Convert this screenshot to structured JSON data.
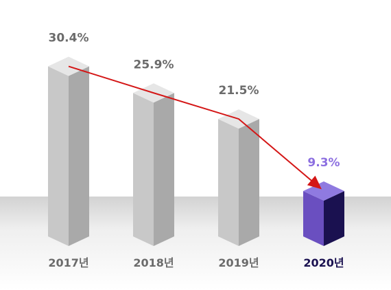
{
  "chart_data": {
    "type": "bar",
    "style": "3d-columns-with-trend-arrow",
    "categories": [
      "2017년",
      "2018년",
      "2019년",
      "2020년"
    ],
    "values": [
      30.4,
      25.9,
      21.5,
      9.3
    ],
    "value_labels": [
      "30.4%",
      "25.9%",
      "21.5%",
      "9.3%"
    ],
    "unit": "%",
    "highlight_index": 3,
    "trend_line": true,
    "grid": false,
    "legend": "none",
    "colors": {
      "bar_front": "#c8c8c8",
      "bar_side": "#a9a9a9",
      "bar_top": "#e6e6e6",
      "highlight_front": "#6a4fc0",
      "highlight_side": "#1a1150",
      "highlight_top": "#8f7ae0",
      "label_gray": "#6b6b6b",
      "highlight_value_label": "#8c6fe0",
      "highlight_category_label": "#1a1150",
      "trend_line": "#d41616",
      "floor": "#ececec"
    }
  }
}
